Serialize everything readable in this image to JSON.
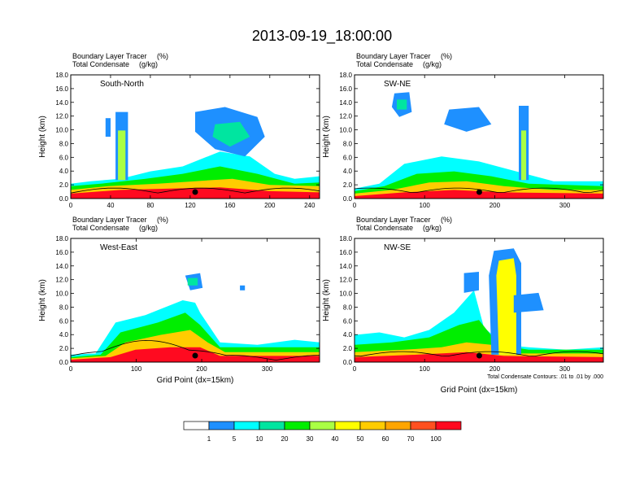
{
  "figure": {
    "title": "2013-09-19_18:00:00",
    "contour_note": "Total Condensate Contours: .01 to .01 by .000"
  },
  "colorbar": {
    "colors": [
      "#ffffff",
      "#1e90ff",
      "#00ffff",
      "#00e5a0",
      "#00ee00",
      "#aaff44",
      "#ffff00",
      "#ffcc00",
      "#ffa500",
      "#ff5020",
      "#ff0a20"
    ],
    "labels": [
      "1",
      "5",
      "10",
      "20",
      "30",
      "40",
      "50",
      "60",
      "70",
      "100"
    ]
  },
  "chart_data": [
    {
      "type": "heatmap",
      "panel_label": "South-North",
      "subtitle_left": [
        "Boundary Layer Tracer",
        "Total Condensate"
      ],
      "subtitle_units": [
        "(%)",
        "(g/kg)"
      ],
      "ylabel": "Height (km)",
      "xlabel": "",
      "xlim": [
        0,
        250
      ],
      "ylim": [
        0,
        18
      ],
      "xticks": [
        "0",
        "40",
        "80",
        "120",
        "160",
        "200",
        "240"
      ],
      "yticks": [
        "0.0",
        "2.0",
        "4.0",
        "6.0",
        "8.0",
        "10.0",
        "12.0",
        "14.0",
        "16.0",
        "18.0"
      ],
      "location_marker_x": 125
    },
    {
      "type": "heatmap",
      "panel_label": "SW-NE",
      "subtitle_left": [
        "Boundary Layer Tracer",
        "Total Condensate"
      ],
      "subtitle_units": [
        "(%)",
        "(g/kg)"
      ],
      "ylabel": "Height (km)",
      "xlabel": "",
      "xlim": [
        0,
        355
      ],
      "ylim": [
        0,
        18
      ],
      "xticks": [
        "0",
        "100",
        "200",
        "300"
      ],
      "yticks": [
        "0.0",
        "2.0",
        "4.0",
        "6.0",
        "8.0",
        "10.0",
        "12.0",
        "14.0",
        "16.0",
        "18.0"
      ],
      "location_marker_x": 178
    },
    {
      "type": "heatmap",
      "panel_label": "West-East",
      "subtitle_left": [
        "Boundary Layer Tracer",
        "Total Condensate"
      ],
      "subtitle_units": [
        "(%)",
        "(g/kg)"
      ],
      "ylabel": "Height (km)",
      "xlabel": "Grid Point (dx=15km)",
      "xlim": [
        0,
        380
      ],
      "ylim": [
        0,
        18
      ],
      "xticks": [
        "0",
        "100",
        "200",
        "300"
      ],
      "yticks": [
        "0.0",
        "2.0",
        "4.0",
        "6.0",
        "8.0",
        "10.0",
        "12.0",
        "14.0",
        "16.0",
        "18.0"
      ],
      "location_marker_x": 190
    },
    {
      "type": "heatmap",
      "panel_label": "NW-SE",
      "subtitle_left": [
        "Boundary Layer Tracer",
        "Total Condensate"
      ],
      "subtitle_units": [
        "(%)",
        "(g/kg)"
      ],
      "ylabel": "Height (km)",
      "xlabel": "Grid Point (dx=15km)",
      "xlim": [
        0,
        355
      ],
      "ylim": [
        0,
        18
      ],
      "xticks": [
        "0",
        "100",
        "200",
        "300"
      ],
      "yticks": [
        "0.0",
        "2.0",
        "4.0",
        "6.0",
        "8.0",
        "10.0",
        "12.0",
        "14.0",
        "16.0",
        "18.0"
      ],
      "location_marker_x": 178
    }
  ]
}
